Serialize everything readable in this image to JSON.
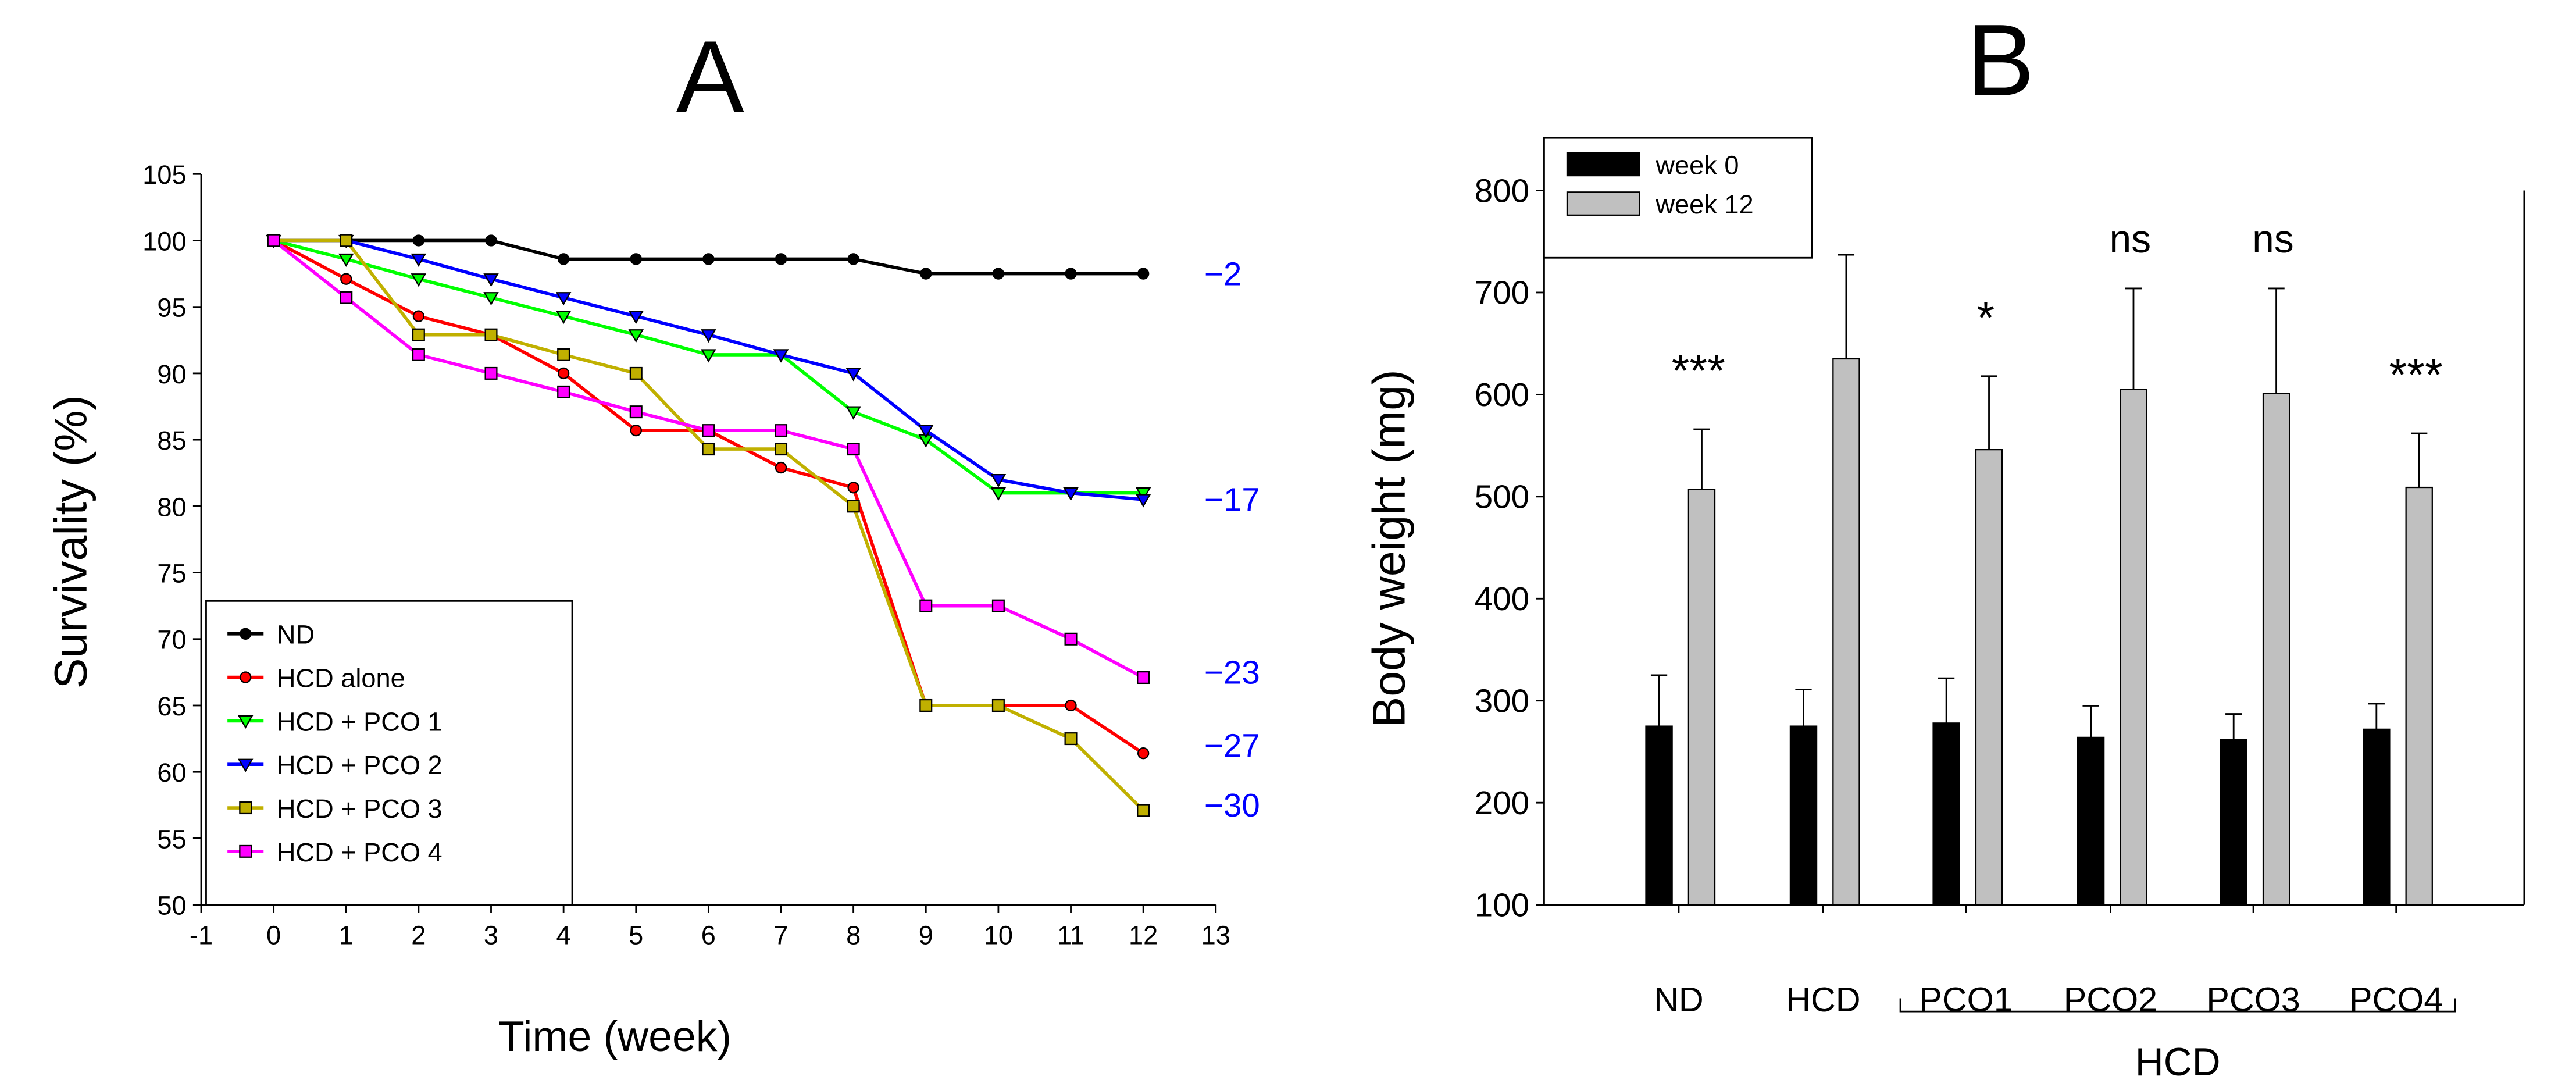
{
  "chart_data": [
    {
      "type": "line",
      "panel_label": "A",
      "title": "",
      "xlabel": "Time (week)",
      "ylabel": "Survivality (%)",
      "xlim": [
        -1,
        13
      ],
      "ylim": [
        50,
        105
      ],
      "xticks": [
        "-1",
        "0",
        "1",
        "2",
        "3",
        "4",
        "5",
        "6",
        "7",
        "8",
        "9",
        "10",
        "11",
        "12",
        "13"
      ],
      "yticks": [
        "50",
        "55",
        "60",
        "65",
        "70",
        "75",
        "80",
        "85",
        "90",
        "95",
        "100",
        "105"
      ],
      "grid": false,
      "legend_position": "bottom-left",
      "x": [
        0,
        1,
        2,
        3,
        4,
        5,
        6,
        7,
        8,
        9,
        10,
        11,
        12
      ],
      "series": [
        {
          "name": "ND",
          "color": "#000000",
          "marker": "circle",
          "values": [
            100,
            100,
            100,
            100,
            98.6,
            98.6,
            98.6,
            98.6,
            98.6,
            97.5,
            97.5,
            97.5,
            97.5
          ]
        },
        {
          "name": "HCD alone",
          "color": "#ff0000",
          "marker": "circle",
          "values": [
            100,
            97.1,
            94.3,
            92.9,
            90,
            85.7,
            85.7,
            82.9,
            81.4,
            65,
            65,
            65,
            61.4
          ]
        },
        {
          "name": "HCD + PCO 1",
          "color": "#00ff00",
          "marker": "triangle-down",
          "values": [
            100,
            98.6,
            97.1,
            95.7,
            94.3,
            92.9,
            91.4,
            91.4,
            87.1,
            85,
            81,
            81,
            81
          ]
        },
        {
          "name": "HCD + PCO 2",
          "color": "#0000ff",
          "marker": "triangle-down",
          "values": [
            100,
            100,
            98.6,
            97.1,
            95.7,
            94.3,
            92.9,
            91.4,
            90,
            85.7,
            82,
            81,
            80.5
          ]
        },
        {
          "name": "HCD + PCO 3",
          "color": "#c0b000",
          "marker": "square",
          "values": [
            100,
            100,
            92.9,
            92.9,
            91.4,
            90,
            84.3,
            84.3,
            80,
            65,
            65,
            62.5,
            57.1
          ]
        },
        {
          "name": "HCD + PCO 4",
          "color": "#ff00ff",
          "marker": "square",
          "values": [
            100,
            95.7,
            91.4,
            90,
            88.6,
            87.1,
            85.7,
            85.7,
            84.3,
            72.5,
            72.5,
            70,
            67.1
          ]
        }
      ],
      "annotations": [
        {
          "text": "−2",
          "y": 97.5
        },
        {
          "text": "−17",
          "y": 80.5
        },
        {
          "text": "−23",
          "y": 67.5
        },
        {
          "text": "−27",
          "y": 62
        },
        {
          "text": "−30",
          "y": 57.5
        }
      ],
      "annotation_color": "#0000ff"
    },
    {
      "type": "bar",
      "panel_label": "B",
      "title": "",
      "xlabel": "",
      "ylabel": "Body weight (mg)",
      "ylim": [
        100,
        800
      ],
      "yticks": [
        "100",
        "200",
        "300",
        "400",
        "500",
        "600",
        "700",
        "800"
      ],
      "grid": false,
      "legend_position": "top-left",
      "categories": [
        "ND",
        "HCD",
        "PCO1",
        "PCO2",
        "PCO3",
        "PCO4"
      ],
      "group_bracket": {
        "label": "HCD",
        "from": "PCO1",
        "to": "PCO4"
      },
      "series": [
        {
          "name": "week 0",
          "color": "#000000",
          "values": [
            275,
            275,
            278,
            264,
            262,
            272
          ],
          "error_upper": [
            325,
            311,
            322,
            295,
            287,
            297
          ]
        },
        {
          "name": "week 12",
          "color": "#c0c0c0",
          "values": [
            507,
            635,
            546,
            605,
            601,
            509
          ],
          "error_upper": [
            566,
            737,
            618,
            704,
            704,
            562
          ]
        }
      ],
      "significance": [
        "***",
        "",
        "*",
        "ns",
        "ns",
        "***"
      ]
    }
  ]
}
